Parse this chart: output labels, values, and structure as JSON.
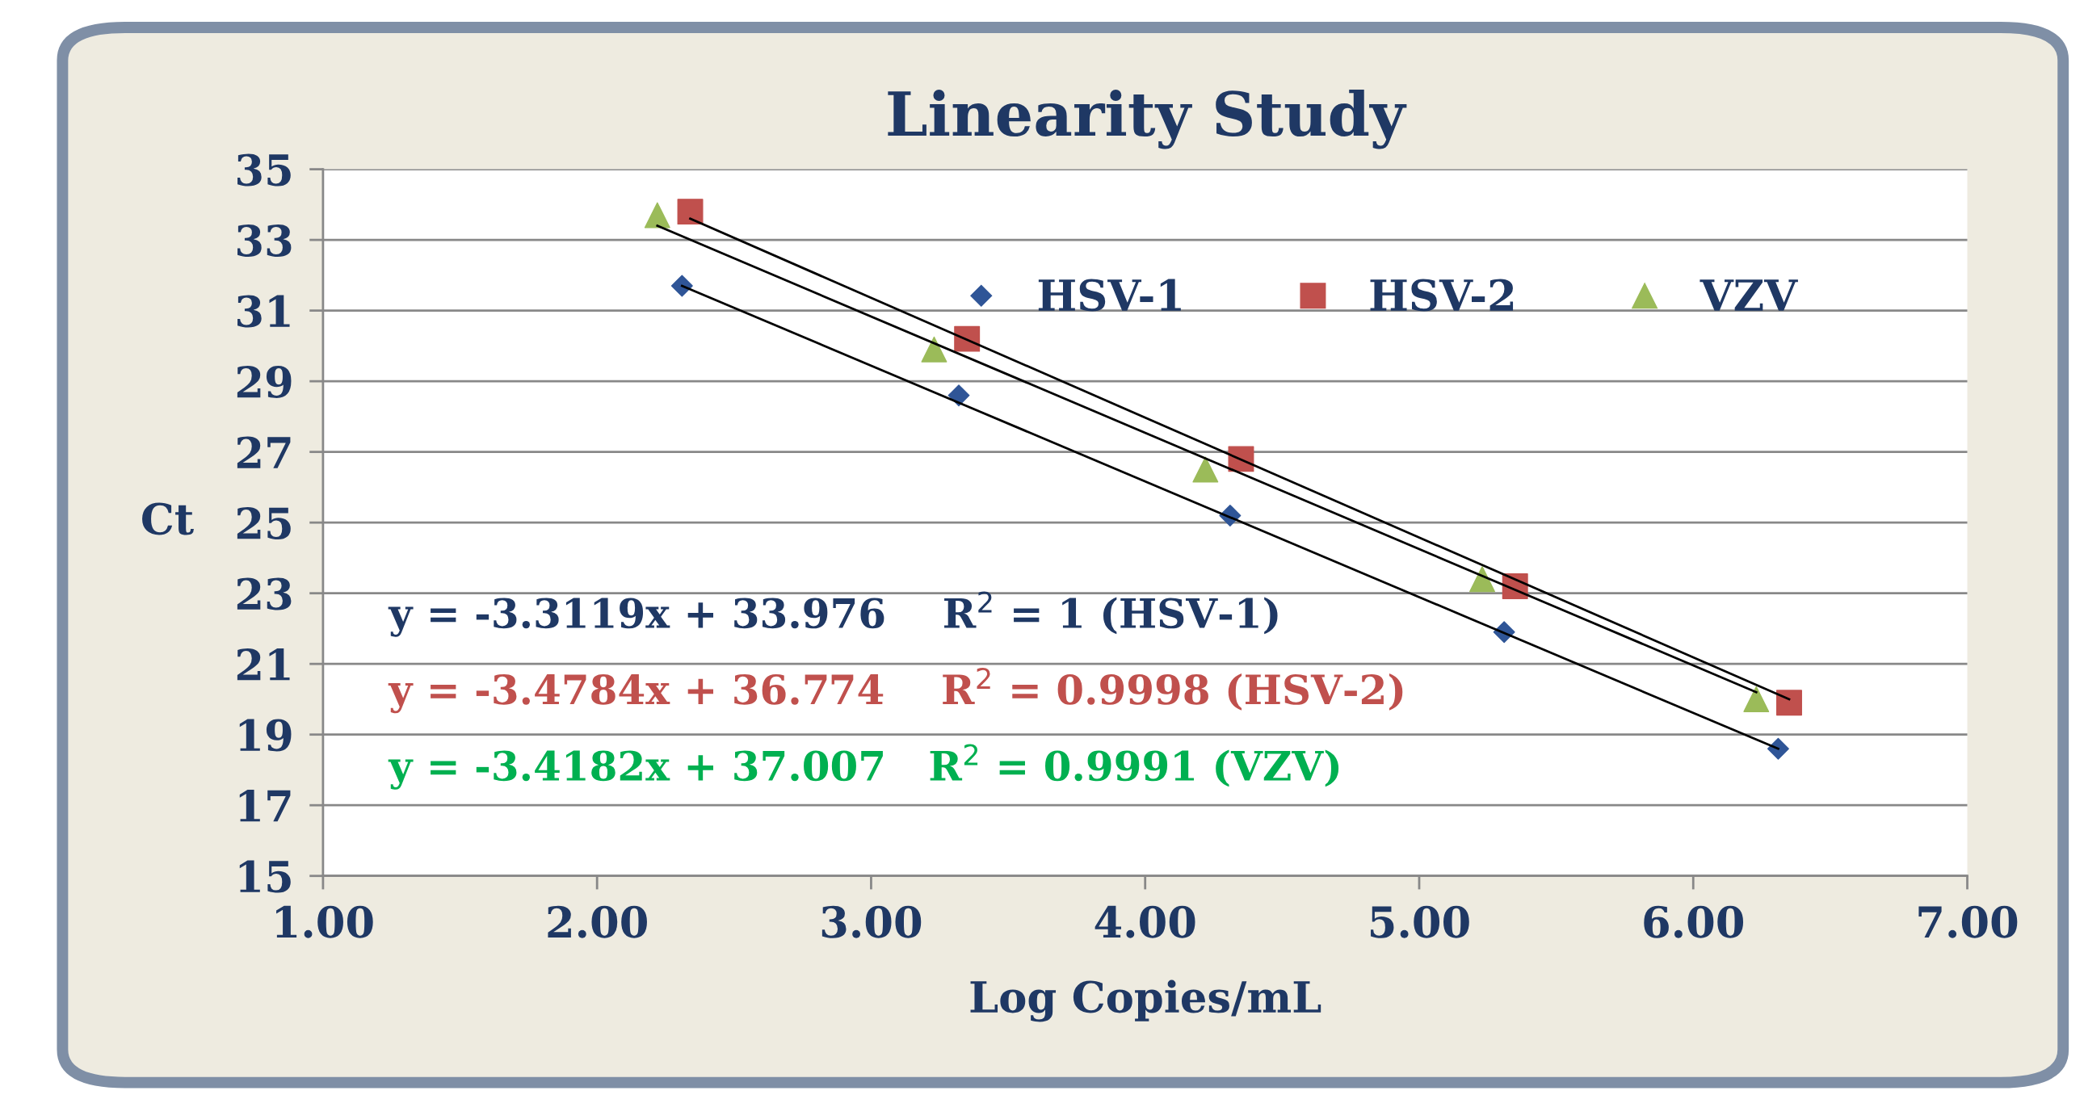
{
  "chart_data": {
    "type": "scatter",
    "title": "Linearity Study",
    "xlabel": "Log Copies/mL",
    "ylabel": "Ct",
    "xlim": [
      1,
      7
    ],
    "xticks": [
      {
        "value": 1,
        "label": "1.00"
      },
      {
        "value": 2,
        "label": "2.00"
      },
      {
        "value": 3,
        "label": "3.00"
      },
      {
        "value": 4,
        "label": "4.00"
      },
      {
        "value": 5,
        "label": "5.00"
      },
      {
        "value": 6,
        "label": "6.00"
      },
      {
        "value": 7,
        "label": "7.00"
      }
    ],
    "ylim": [
      15,
      35
    ],
    "yticks": [
      15,
      17,
      19,
      21,
      23,
      25,
      27,
      29,
      31,
      33,
      35
    ],
    "grid": "y",
    "legend": "top right",
    "series": [
      {
        "name": "HSV-1",
        "color": "#2f5597",
        "marker": "diamond",
        "x": [
          2.31,
          3.32,
          4.31,
          5.31,
          6.31
        ],
        "values": [
          31.7,
          28.6,
          25.2,
          21.9,
          18.6
        ]
      },
      {
        "name": "HSV-2",
        "color": "#c0504d",
        "marker": "square",
        "x": [
          2.34,
          3.35,
          4.35,
          5.35,
          6.35
        ],
        "values": [
          33.8,
          30.2,
          26.8,
          23.2,
          19.9
        ]
      },
      {
        "name": "VZV",
        "color": "#9bbb59",
        "marker": "triangle",
        "x": [
          2.22,
          3.23,
          4.22,
          5.23,
          6.23
        ],
        "values": [
          33.7,
          29.9,
          26.5,
          23.4,
          20.0
        ]
      },
      {
        "type": "line",
        "color": "#000000",
        "marker": "none",
        "x": [
          2.31,
          6.31
        ],
        "values": [
          31.7,
          18.6
        ]
      },
      {
        "type": "line",
        "color": "#000000",
        "marker": "none",
        "x": [
          2.34,
          6.35
        ],
        "values": [
          33.6,
          20.0
        ]
      },
      {
        "type": "line",
        "color": "#000000",
        "marker": "none",
        "x": [
          2.22,
          6.23
        ],
        "values": [
          33.4,
          20.2
        ]
      }
    ],
    "annotations": [
      "y = -3.3119x + 33.976    R$^{2}$ = 1 (HSV-1)",
      "y = -3.4784x + 36.774    R$^{2}$ = 0.9998 (HSV-2)",
      "y = -3.4182x + 37.007   R$^{2}$ = 0.9991 (VZV)"
    ]
  }
}
